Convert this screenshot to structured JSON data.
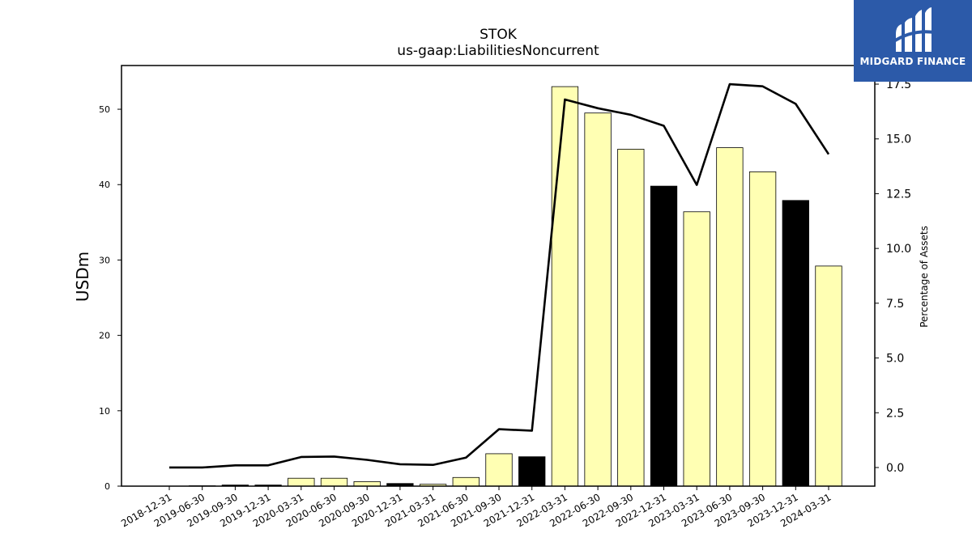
{
  "chart_data": {
    "type": "bar",
    "title": "STOK",
    "subtitle": "us-gaap:LiabilitiesNoncurrent",
    "ylabel": "USDm",
    "y2label": "Percentage of Assets",
    "categories": [
      "2018-12-31",
      "2019-06-30",
      "2019-09-30",
      "2019-12-31",
      "2020-03-31",
      "2020-06-30",
      "2020-09-30",
      "2020-12-31",
      "2021-03-31",
      "2021-06-30",
      "2021-09-30",
      "2021-12-31",
      "2022-03-31",
      "2022-06-30",
      "2022-09-30",
      "2022-12-31",
      "2023-03-31",
      "2023-06-30",
      "2023-09-30",
      "2023-12-31",
      "2024-03-31"
    ],
    "series": [
      {
        "type": "bar",
        "values": [
          0.0,
          0.05,
          0.15,
          0.15,
          1.05,
          1.05,
          0.6,
          0.35,
          0.25,
          1.15,
          4.3,
          3.9,
          53.0,
          49.5,
          44.7,
          39.8,
          36.4,
          44.9,
          41.7,
          37.9,
          29.2
        ],
        "colors": [
          "#ffffb3",
          "#ffffb3",
          "#000000",
          "#000000",
          "#ffffb3",
          "#ffffb3",
          "#ffffb3",
          "#000000",
          "#ffffb3",
          "#ffffb3",
          "#ffffb3",
          "#000000",
          "#ffffb3",
          "#ffffb3",
          "#ffffb3",
          "#000000",
          "#ffffb3",
          "#ffffb3",
          "#ffffb3",
          "#000000",
          "#ffffb3"
        ]
      },
      {
        "type": "line",
        "axis": "right",
        "values": [
          0.0,
          0.0,
          0.1,
          0.1,
          0.48,
          0.5,
          0.35,
          0.15,
          0.12,
          0.45,
          1.75,
          1.68,
          16.8,
          16.4,
          16.1,
          15.6,
          12.9,
          17.5,
          17.4,
          16.6,
          14.3
        ]
      }
    ],
    "ylim": [
      0,
      55.8
    ],
    "y2lim": [
      -0.85,
      18.35
    ],
    "yticks": [
      0,
      10,
      20,
      30,
      40,
      50
    ],
    "y2ticks": [
      "0.0",
      "2.5",
      "5.0",
      "7.5",
      "10.0",
      "12.5",
      "15.0",
      "17.5"
    ],
    "grid": false,
    "legend": "none"
  },
  "logo": {
    "text": "MIDGARD FINANCE",
    "icon": "midgard-finance-logo-icon",
    "color": "#2c5aa9"
  }
}
